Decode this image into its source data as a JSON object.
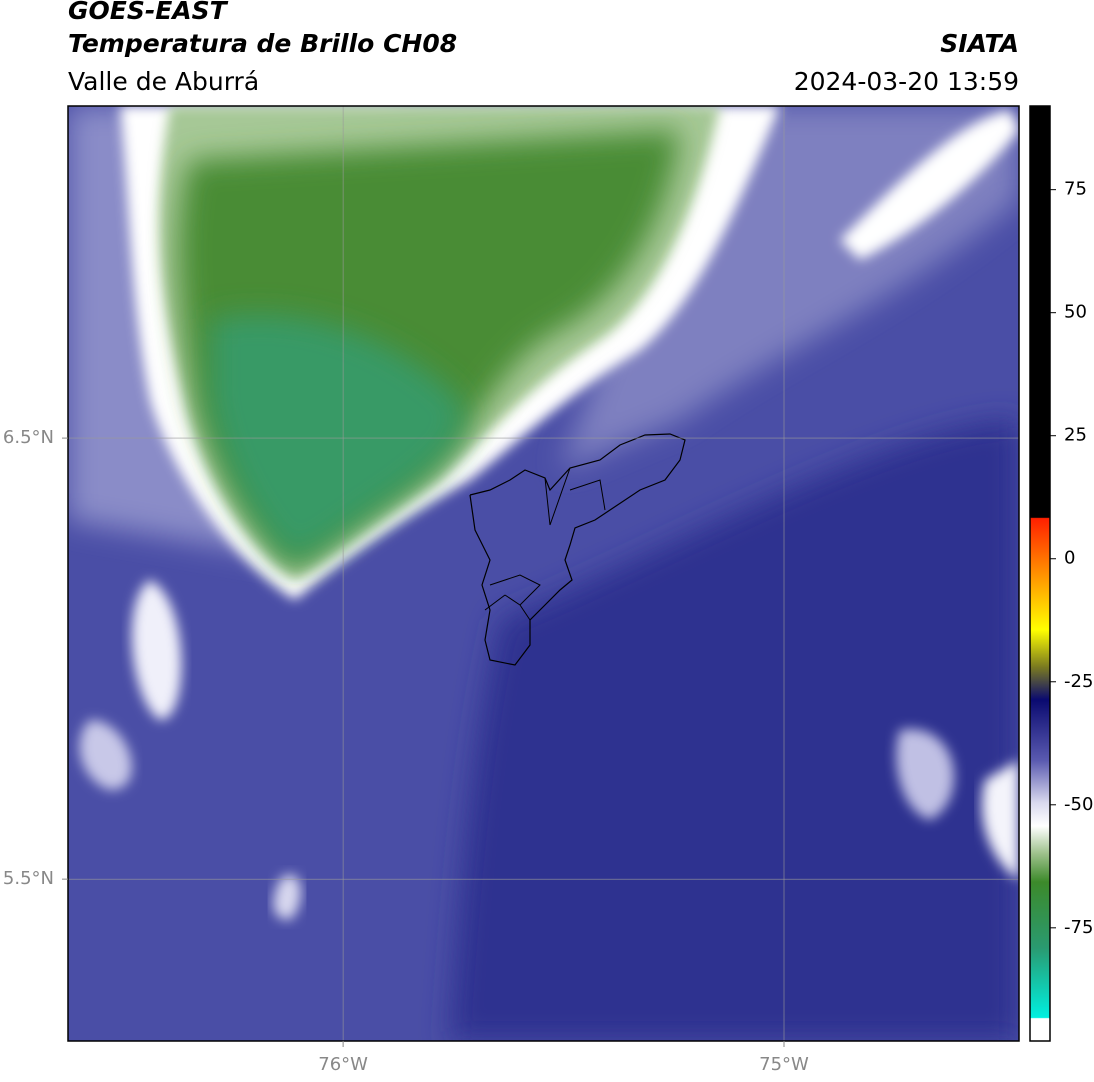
{
  "header": {
    "title": "GOES-EAST",
    "subtitle": "Temperatura de Brillo CH08",
    "region": "Valle de Aburrá",
    "source": "SIATA",
    "datetime": "2024-03-20 13:59"
  },
  "map": {
    "xlim": [
      -76.624,
      -74.467
    ],
    "ylim": [
      5.133,
      7.253
    ],
    "xticks": [
      {
        "value": -76,
        "label": "76°W"
      },
      {
        "value": -75,
        "label": "75°W"
      }
    ],
    "yticks": [
      {
        "value": 6.5,
        "label": "6.5°N"
      },
      {
        "value": 5.5,
        "label": "5.5°N"
      }
    ]
  },
  "colorbar": {
    "lim": [
      -98,
      92
    ],
    "ticks": [
      75,
      50,
      25,
      0,
      -25,
      -50,
      -75
    ]
  }
}
